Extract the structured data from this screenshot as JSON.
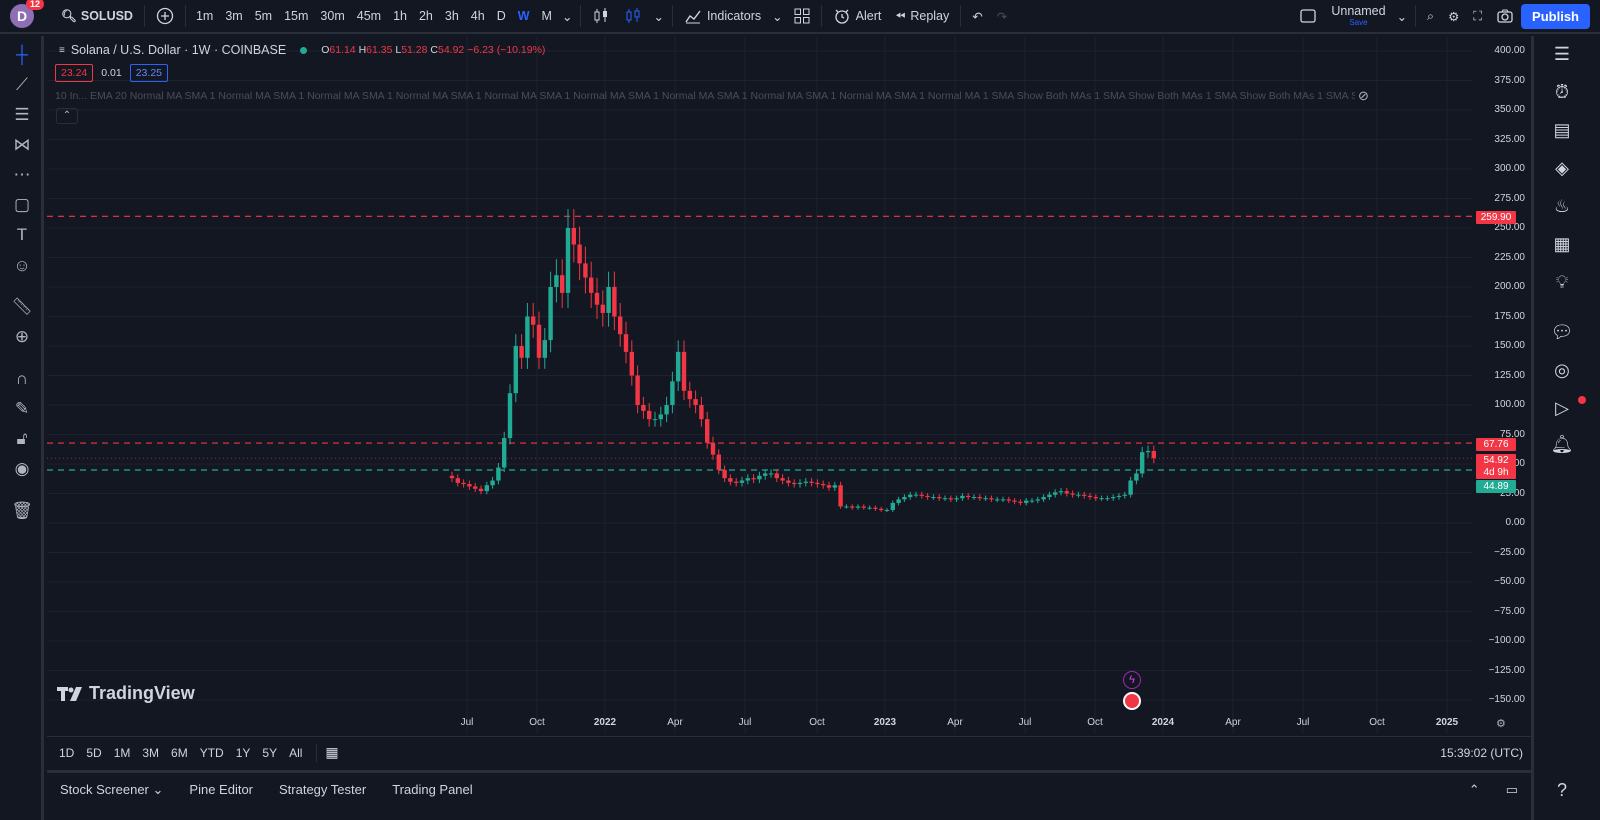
{
  "topbar": {
    "avatar_letter": "D",
    "notif_count": "12",
    "symbol": "SOLUSD",
    "intervals": [
      "1m",
      "3m",
      "5m",
      "15m",
      "30m",
      "45m",
      "1h",
      "2h",
      "3h",
      "4h",
      "D",
      "W",
      "M"
    ],
    "active_interval": "W",
    "indicators_label": "Indicators",
    "alert_label": "Alert",
    "replay_label": "Replay",
    "layout_name": "Unnamed",
    "layout_sub": "Save",
    "publish_label": "Publish"
  },
  "legend": {
    "title": "Solana / U.S. Dollar · 1W · COINBASE",
    "o_label": "O",
    "o": "61.14",
    "h_label": "H",
    "h": "61.35",
    "l_label": "L",
    "l": "51.28",
    "c_label": "C",
    "c": "54.92",
    "change": "−6.23 (−10.19%)",
    "bid": "23.24",
    "spread": "0.01",
    "ask": "23.25",
    "indicators_text": "10 In... EMA 20 Normal MA SMA 1 Normal MA SMA 1 Normal MA SMA 1 Normal MA SMA 1 Normal MA SMA 1 Normal MA SMA 1 Normal MA SMA 1 Normal MA SMA 1 Normal MA SMA 1 Normal MA 1 SMA Show Both MAs 1 SMA Show Both MAs 1 SMA Show Both MAs 1 SMA Show ..."
  },
  "chart_data": {
    "type": "candlestick",
    "y_ticks": [
      "400.00",
      "375.00",
      "350.00",
      "325.00",
      "300.00",
      "275.00",
      "250.00",
      "225.00",
      "200.00",
      "175.00",
      "150.00",
      "125.00",
      "100.00",
      "75.00",
      "50.00",
      "25.00",
      "0.00",
      "−25.00",
      "−50.00",
      "−75.00",
      "−100.00",
      "−125.00",
      "−150.00"
    ],
    "x_ticks": [
      "Jul",
      "Oct",
      "2022",
      "Apr",
      "Jul",
      "Oct",
      "2023",
      "Apr",
      "Jul",
      "Oct",
      "2024",
      "Apr",
      "Jul",
      "Oct",
      "2025"
    ],
    "ylim": [
      -160,
      410
    ],
    "horizontal_lines": [
      {
        "value": 259.9,
        "color": "#f23645",
        "style": "dashed"
      },
      {
        "value": 67.76,
        "color": "#f23645",
        "style": "dashed"
      },
      {
        "value": 44.89,
        "color": "#22ab94",
        "style": "dashed"
      }
    ],
    "price_tags": {
      "resistance_high": "259.90",
      "resistance_low": "67.76",
      "last_price": "54.92",
      "countdown": "4d 9h",
      "support": "44.89"
    },
    "closes": [
      38,
      34,
      33,
      31,
      29,
      27,
      32,
      36,
      47,
      72,
      110,
      150,
      140,
      175,
      168,
      140,
      155,
      200,
      210,
      195,
      250,
      236,
      220,
      208,
      195,
      185,
      178,
      200,
      175,
      160,
      145,
      125,
      100,
      95,
      88,
      88,
      92,
      100,
      120,
      145,
      112,
      105,
      100,
      88,
      68,
      58,
      45,
      38,
      35,
      34,
      36,
      38,
      37,
      40,
      42,
      42,
      38,
      36,
      34,
      33,
      34,
      35,
      34,
      33,
      32,
      30,
      32,
      14,
      14,
      13,
      14,
      13,
      13,
      12,
      11,
      11,
      17,
      20,
      22,
      24,
      24,
      23,
      22,
      22,
      21,
      21,
      20,
      21,
      23,
      22,
      22,
      21,
      21,
      20,
      20,
      20,
      19,
      18,
      17,
      19,
      19,
      20,
      22,
      24,
      26,
      27,
      25,
      24,
      24,
      23,
      22,
      21,
      21,
      21,
      22,
      23,
      24,
      36,
      42,
      60,
      61,
      54.92
    ]
  },
  "watermark": "TradingView",
  "range_buttons": [
    "1D",
    "5D",
    "1M",
    "3M",
    "6M",
    "YTD",
    "1Y",
    "5Y",
    "All"
  ],
  "clock": "15:39:02 (UTC)",
  "bottom_tabs": [
    "Stock Screener",
    "Pine Editor",
    "Strategy Tester",
    "Trading Panel"
  ],
  "colors": {
    "bg": "#131722",
    "up": "#22ab94",
    "down": "#f23645",
    "accent": "#2962ff",
    "grid": "#1e222d"
  }
}
